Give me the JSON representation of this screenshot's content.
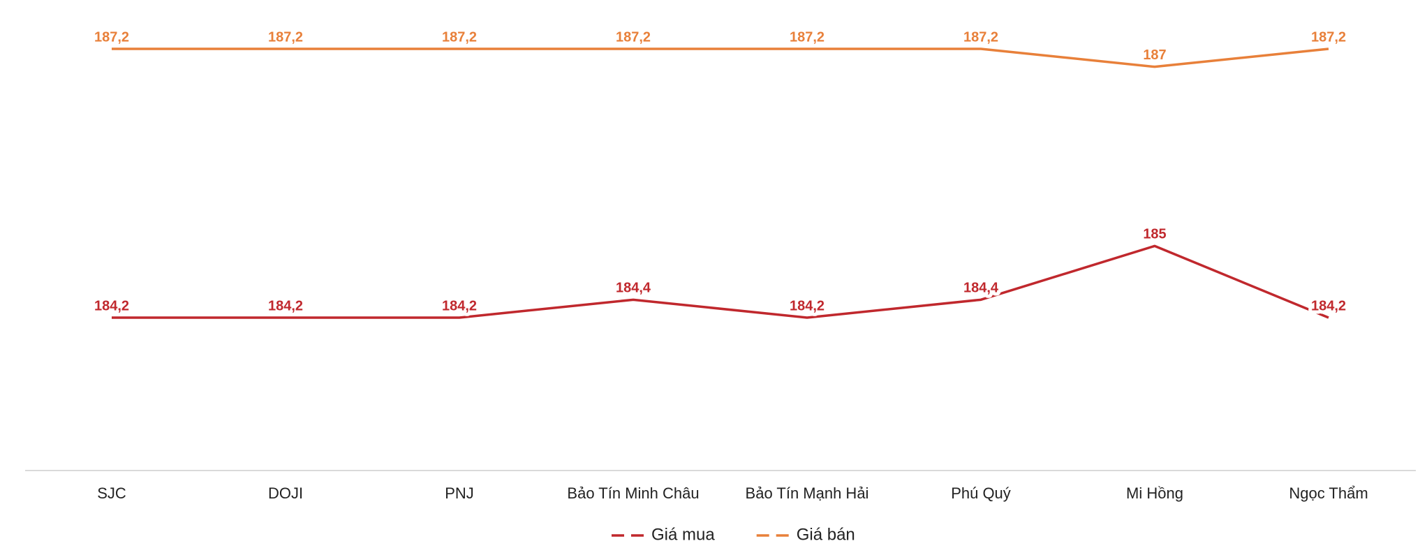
{
  "chart_data": {
    "type": "line",
    "categories": [
      "SJC",
      "DOJI",
      "PNJ",
      "Bảo Tín Minh Châu",
      "Bảo Tín Mạnh Hải",
      "Phú Quý",
      "Mi Hồng",
      "Ngọc Thẩm"
    ],
    "series": [
      {
        "name": "Giá mua",
        "color": "#c0282d",
        "values": [
          184.2,
          184.2,
          184.2,
          184.4,
          184.2,
          184.4,
          185,
          184.2
        ],
        "value_labels": [
          "184,2",
          "184,2",
          "184,2",
          "184,4",
          "184,2",
          "184,4",
          "185",
          "184,2"
        ]
      },
      {
        "name": "Giá bán",
        "color": "#e8803a",
        "values": [
          187.2,
          187.2,
          187.2,
          187.2,
          187.2,
          187.2,
          187,
          187.2
        ],
        "value_labels": [
          "187,2",
          "187,2",
          "187,2",
          "187,2",
          "187,2",
          "187,2",
          "187",
          "187,2"
        ]
      }
    ],
    "legend": "bottom"
  }
}
